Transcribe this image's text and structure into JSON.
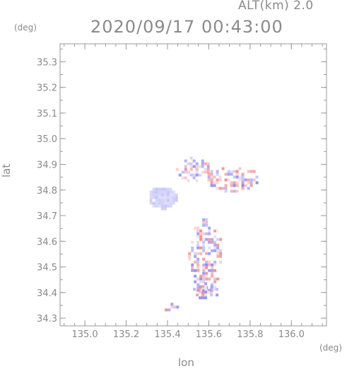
{
  "header": {
    "altitude": "ALT(km) 2.0",
    "datetime": "2020/09/17 00:43:00"
  },
  "axes": {
    "x_unit": "(deg)",
    "y_unit": "(deg)",
    "x_label": "lon",
    "y_label": "lat",
    "x_range": [
      134.88,
      136.17
    ],
    "y_range": [
      34.27,
      35.37
    ],
    "x_ticks": [
      135.0,
      135.2,
      135.4,
      135.6,
      135.8,
      136.0
    ],
    "x_tick_labels": [
      "135.0",
      "135.2",
      "135.4",
      "135.6",
      "135.8",
      "136.0"
    ],
    "y_ticks": [
      34.3,
      34.4,
      34.5,
      34.6,
      34.7,
      34.8,
      34.9,
      35.0,
      35.1,
      35.2,
      35.3
    ],
    "y_tick_labels": [
      "34.3",
      "34.4",
      "34.5",
      "34.6",
      "34.7",
      "34.8",
      "34.9",
      "35.0",
      "35.1",
      "35.2",
      "35.3"
    ],
    "minor_step": 0.05,
    "grid": false
  },
  "colors": {
    "frame": "#9a9a9a",
    "text": "#8a8a8a",
    "positive": "#f08080",
    "negative": "#8080f0",
    "neutral": "#ffffff"
  },
  "echo_regions": [
    {
      "name": "west-patch",
      "lon_min": 135.3,
      "lon_max": 135.44,
      "lat_min": 34.73,
      "lat_max": 34.82,
      "tone": "blue"
    },
    {
      "name": "main-south",
      "lon_min": 135.5,
      "lon_max": 135.66,
      "lat_min": 34.4,
      "lat_max": 34.69,
      "tone": "mixed"
    },
    {
      "name": "main-lower",
      "lon_min": 135.51,
      "lon_max": 135.64,
      "lat_min": 34.38,
      "lat_max": 34.44,
      "tone": "mixed"
    },
    {
      "name": "north-east-band",
      "lon_min": 135.58,
      "lon_max": 135.84,
      "lat_min": 34.8,
      "lat_max": 34.9,
      "tone": "mixed"
    },
    {
      "name": "north-scatter",
      "lon_min": 135.44,
      "lon_max": 135.6,
      "lat_min": 34.84,
      "lat_max": 34.93,
      "tone": "mixed"
    },
    {
      "name": "south-islands",
      "lon_min": 135.36,
      "lon_max": 135.46,
      "lat_min": 34.33,
      "lat_max": 34.36,
      "tone": "mixed"
    }
  ]
}
